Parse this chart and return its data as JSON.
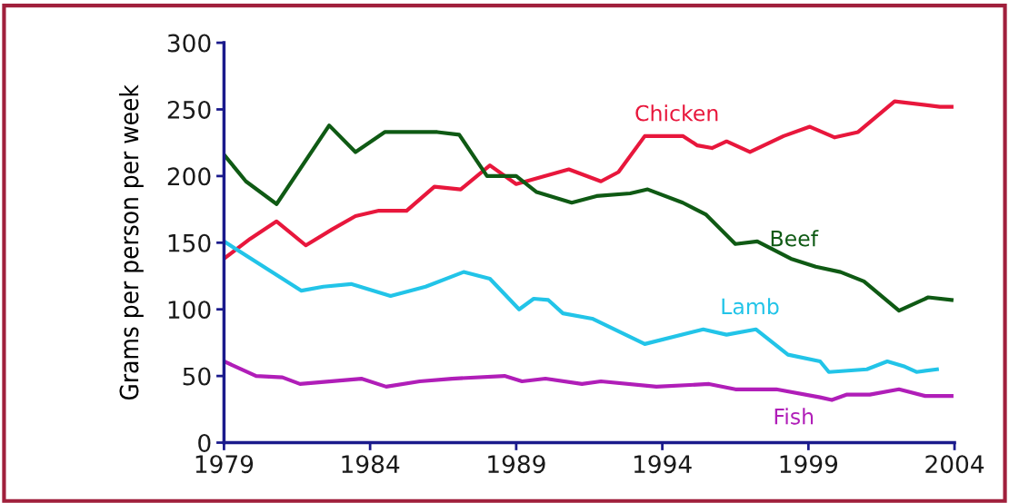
{
  "chart_data": {
    "type": "line",
    "ylabel": "Grams per person per week",
    "xlim": [
      1979,
      2004
    ],
    "ylim": [
      0,
      300
    ],
    "xticks": [
      1979,
      1984,
      1989,
      1994,
      1999,
      2004
    ],
    "yticks": [
      0,
      50,
      100,
      150,
      200,
      250,
      300
    ],
    "grid": false,
    "legend": false,
    "marker": "none",
    "line_style": "solid",
    "series": [
      {
        "name": "Chicken",
        "color": "#e8173c",
        "x": [
          1979,
          1979.9,
          1980.8,
          1981.8,
          1982.7,
          1983.5,
          1984.3,
          1985.25,
          1986.2,
          1987.1,
          1988.1,
          1989,
          1990.8,
          1991.9,
          1992.5,
          1993.4,
          1994.7,
          1995.2,
          1995.7,
          1996.2,
          1997,
          1998.15,
          1999.05,
          1999.9,
          2000.7,
          2001.95,
          2003.5,
          2003.9
        ],
        "values": [
          138,
          153,
          166,
          148,
          160,
          170,
          174,
          174,
          192,
          190,
          208,
          194,
          205,
          196,
          203,
          230,
          230,
          223,
          221,
          226,
          218,
          230,
          237,
          229,
          233,
          256,
          252,
          252
        ]
      },
      {
        "name": "Beef",
        "color": "#0f5a14",
        "x": [
          1979,
          1979.75,
          1980.8,
          1982.6,
          1983.5,
          1984.5,
          1986.3,
          1987.05,
          1988,
          1989,
          1989.7,
          1990.9,
          1991.75,
          1992.9,
          1993.5,
          1994.7,
          1995.5,
          1996.5,
          1997.25,
          1998.4,
          1999.25,
          2000.1,
          2000.9,
          2002.1,
          2003.1,
          2003.9
        ],
        "values": [
          216,
          196,
          179,
          238,
          218,
          233,
          233,
          231,
          200,
          200,
          188,
          180,
          185,
          187,
          190,
          180,
          171,
          149,
          151,
          138,
          132,
          128,
          121,
          99,
          109,
          107
        ]
      },
      {
        "name": "Lamb",
        "color": "#22c4e8",
        "x": [
          1979,
          1981.65,
          1982.4,
          1983.35,
          1984.7,
          1985.9,
          1987.2,
          1988.1,
          1989.1,
          1989.6,
          1990.1,
          1990.6,
          1991.6,
          1993.4,
          1995.4,
          1996.2,
          1997.2,
          1998.3,
          1999.4,
          1999.7,
          2001,
          2001.7,
          2002.3,
          2002.7,
          2003.4
        ],
        "values": [
          151,
          114,
          117,
          119,
          110,
          117,
          128,
          123,
          100,
          108,
          107,
          97,
          93,
          74,
          85,
          81,
          85,
          66,
          61,
          53,
          55,
          61,
          57,
          53,
          55
        ]
      },
      {
        "name": "Fish",
        "color": "#b01eb8",
        "x": [
          1979,
          1980.1,
          1981,
          1981.6,
          1983.7,
          1984.55,
          1985.7,
          1986.8,
          1988.6,
          1989.2,
          1990,
          1991.25,
          1991.9,
          1993.8,
          1995.6,
          1996.5,
          1997.9,
          1999.4,
          1999.8,
          2000.3,
          2001.1,
          2002.1,
          2003,
          2003.9
        ],
        "values": [
          61,
          50,
          49,
          44,
          48,
          42,
          46,
          48,
          50,
          46,
          48,
          44,
          46,
          42,
          44,
          40,
          40,
          34,
          32,
          36,
          36,
          40,
          35,
          35
        ]
      }
    ]
  }
}
